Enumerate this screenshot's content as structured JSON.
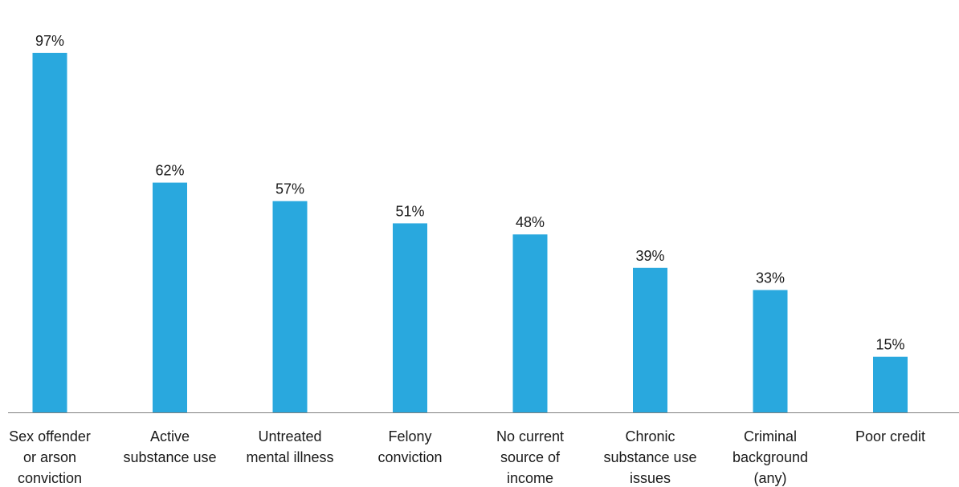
{
  "chart_data": {
    "type": "bar",
    "title": "",
    "xlabel": "",
    "ylabel": "",
    "ylim": [
      0,
      100
    ],
    "grid": false,
    "legend": "none",
    "value_suffix": "%",
    "bar_color": "#29a8de",
    "axis_color": "#7f7f7f",
    "categories": [
      [
        "Sex offender",
        "or arson",
        "conviction"
      ],
      [
        "Active",
        "substance use"
      ],
      [
        "Untreated",
        "mental illness"
      ],
      [
        "Felony",
        "conviction"
      ],
      [
        "No current",
        "source of",
        "income"
      ],
      [
        "Chronic",
        "substance use",
        "issues"
      ],
      [
        "Criminal",
        "background",
        "(any)"
      ],
      [
        "Poor credit"
      ]
    ],
    "values": [
      97,
      62,
      57,
      51,
      48,
      39,
      33,
      15
    ]
  }
}
